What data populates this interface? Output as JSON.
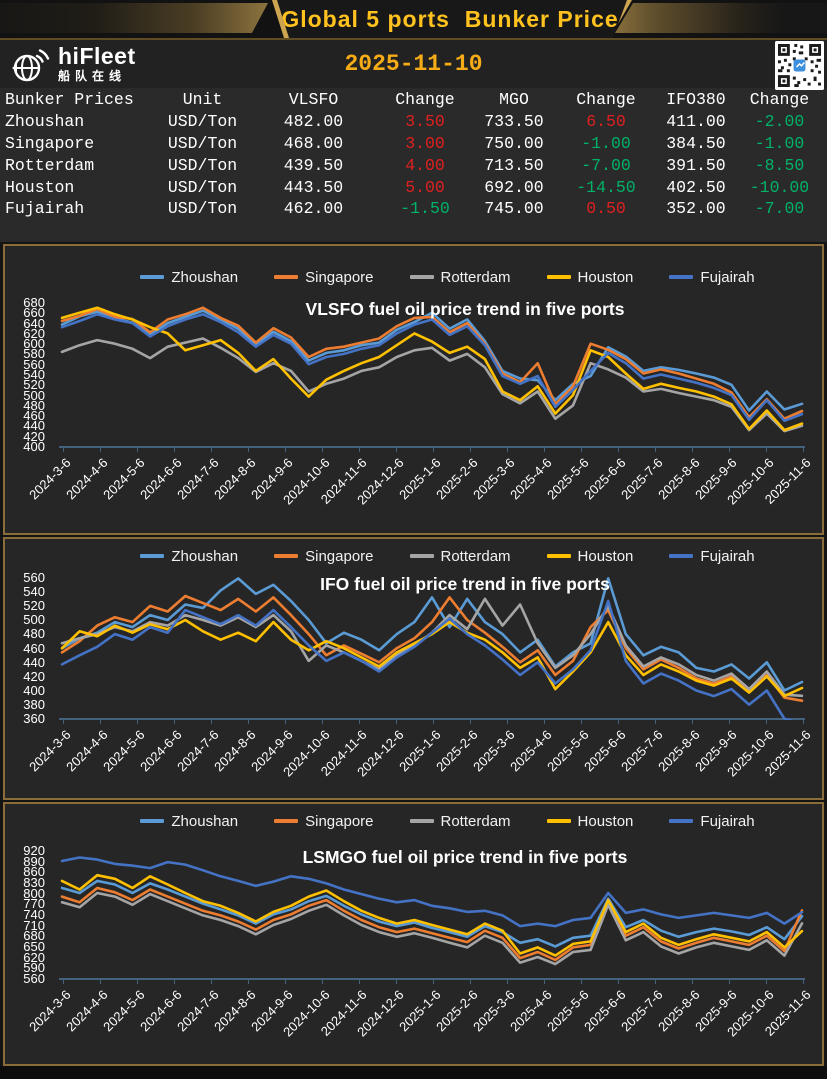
{
  "header": {
    "title": "Global 5 ports  Bunker Price",
    "brand": "hiFleet",
    "brand_cn": "船队在线",
    "date": "2025-11-10"
  },
  "colors": {
    "up_change": "#e02020",
    "down_change": "#00b268",
    "gold_accent": "#ffc21e",
    "section_border": "#8b6d3c",
    "axis_line": "#44617e"
  },
  "table": {
    "columns": [
      "Bunker Prices",
      "Unit",
      "VLSFO",
      "Change",
      "MGO",
      "Change",
      "IFO380",
      "Change"
    ],
    "change_columns": [
      3,
      5,
      7
    ],
    "rows": [
      [
        "Zhoushan",
        "USD/Ton",
        "482.00",
        "3.50",
        "733.50",
        "6.50",
        "411.00",
        "-2.00"
      ],
      [
        "Singapore",
        "USD/Ton",
        "468.00",
        "3.00",
        "750.00",
        "-1.00",
        "384.50",
        "-1.00"
      ],
      [
        "Rotterdam",
        "USD/Ton",
        "439.50",
        "4.00",
        "713.50",
        "-7.00",
        "391.50",
        "-8.50"
      ],
      [
        "Houston",
        "USD/Ton",
        "443.50",
        "5.00",
        "692.00",
        "-14.50",
        "402.50",
        "-10.00"
      ],
      [
        "Fujairah",
        "USD/Ton",
        "462.00",
        "-1.50",
        "745.00",
        "0.50",
        "352.00",
        "-7.00"
      ]
    ]
  },
  "chart_data": [
    {
      "type": "line",
      "title": "VLSFO fuel oil price trend in five ports",
      "legend_position": "top",
      "grid": false,
      "ylim": [
        400,
        680
      ],
      "yticks": [
        680,
        660,
        640,
        620,
        600,
        580,
        560,
        540,
        520,
        500,
        480,
        460,
        440,
        420,
        400
      ],
      "x_tick_labels": [
        "2024-3-6",
        "2024-4-6",
        "2024-5-6",
        "2024-6-6",
        "2024-7-6",
        "2024-8-6",
        "2024-9-6",
        "2024-10-6",
        "2024-11-6",
        "2024-12-6",
        "2025-1-6",
        "2025-2-6",
        "2025-3-6",
        "2025-4-6",
        "2025-5-6",
        "2025-6-6",
        "2025-7-6",
        "2025-8-6",
        "2025-9-6",
        "2025-10-6",
        "2025-11-6"
      ],
      "series": [
        {
          "name": "Zhoushan",
          "color": "#5B9BD5",
          "values": [
            636,
            652,
            661,
            648,
            640,
            616,
            639,
            651,
            663,
            646,
            628,
            597,
            622,
            604,
            566,
            581,
            586,
            596,
            601,
            626,
            641,
            659,
            628,
            646,
            604,
            546,
            531,
            528,
            489,
            521,
            536,
            592,
            574,
            546,
            553,
            548,
            541,
            533,
            519,
            469,
            506,
            471,
            482
          ]
        },
        {
          "name": "Singapore",
          "color": "#ED7D31",
          "values": [
            643,
            653,
            666,
            651,
            647,
            621,
            646,
            656,
            669,
            649,
            634,
            601,
            629,
            611,
            573,
            589,
            593,
            601,
            609,
            633,
            649,
            651,
            621,
            639,
            599,
            541,
            524,
            561,
            481,
            516,
            599,
            587,
            569,
            541,
            549,
            541,
            531,
            521,
            504,
            456,
            491,
            453,
            468
          ]
        },
        {
          "name": "Rotterdam",
          "color": "#A5A5A5",
          "values": [
            583,
            596,
            606,
            599,
            589,
            571,
            593,
            601,
            609,
            591,
            571,
            544,
            561,
            546,
            506,
            521,
            531,
            546,
            553,
            573,
            586,
            591,
            566,
            579,
            553,
            501,
            483,
            506,
            453,
            479,
            561,
            549,
            533,
            506,
            511,
            503,
            496,
            489,
            476,
            431,
            463,
            429,
            439.5
          ]
        },
        {
          "name": "Houston",
          "color": "#FFC000",
          "values": [
            649,
            659,
            669,
            656,
            646,
            631,
            619,
            586,
            596,
            606,
            581,
            546,
            569,
            531,
            496,
            529,
            546,
            561,
            573,
            596,
            619,
            603,
            581,
            593,
            569,
            506,
            489,
            516,
            463,
            499,
            586,
            573,
            541,
            511,
            521,
            513,
            506,
            496,
            481,
            433,
            469,
            431,
            443.5
          ]
        },
        {
          "name": "Fujairah",
          "color": "#4472C4",
          "values": [
            631,
            643,
            656,
            646,
            639,
            613,
            633,
            646,
            656,
            641,
            621,
            593,
            616,
            599,
            559,
            573,
            579,
            589,
            596,
            619,
            636,
            646,
            616,
            633,
            596,
            536,
            521,
            536,
            476,
            509,
            546,
            581,
            561,
            531,
            539,
            531,
            523,
            513,
            499,
            451,
            489,
            449,
            462
          ]
        }
      ]
    },
    {
      "type": "line",
      "title": "IFO fuel oil price trend in five ports",
      "legend_position": "top",
      "grid": false,
      "ylim": [
        360,
        560
      ],
      "yticks": [
        560,
        540,
        520,
        500,
        480,
        460,
        440,
        420,
        400,
        380,
        360
      ],
      "x_tick_labels": [
        "2024-3-6",
        "2024-4-6",
        "2024-5-6",
        "2024-6-6",
        "2024-7-6",
        "2024-8-6",
        "2024-9-6",
        "2024-10-6",
        "2024-11-6",
        "2024-12-6",
        "2025-1-6",
        "2025-2-6",
        "2025-3-6",
        "2025-4-6",
        "2025-5-6",
        "2025-6-6",
        "2025-7-6",
        "2025-8-6",
        "2025-9-6",
        "2025-10-6",
        "2025-11-6"
      ],
      "series": [
        {
          "name": "Zhoushan",
          "color": "#5B9BD5",
          "values": [
            459,
            473,
            481,
            496,
            489,
            506,
            499,
            521,
            516,
            541,
            558,
            536,
            549,
            526,
            499,
            466,
            481,
            471,
            456,
            479,
            496,
            531,
            489,
            529,
            496,
            479,
            453,
            471,
            433,
            453,
            466,
            558,
            479,
            449,
            461,
            453,
            431,
            426,
            436,
            416,
            439,
            399,
            411
          ]
        },
        {
          "name": "Singapore",
          "color": "#ED7D31",
          "values": [
            453,
            469,
            491,
            503,
            496,
            519,
            511,
            533,
            523,
            513,
            529,
            511,
            531,
            506,
            479,
            449,
            463,
            451,
            439,
            459,
            473,
            496,
            531,
            499,
            481,
            461,
            439,
            456,
            421,
            441,
            489,
            513,
            459,
            429,
            443,
            431,
            416,
            409,
            419,
            399,
            421,
            389,
            384.5
          ]
        },
        {
          "name": "Rotterdam",
          "color": "#A5A5A5",
          "values": [
            466,
            473,
            479,
            489,
            483,
            496,
            491,
            506,
            499,
            491,
            503,
            489,
            506,
            483,
            441,
            463,
            453,
            441,
            429,
            449,
            463,
            481,
            506,
            486,
            529,
            491,
            521,
            466,
            431,
            449,
            479,
            519,
            463,
            433,
            446,
            436,
            421,
            413,
            423,
            401,
            426,
            393,
            391.5
          ]
        },
        {
          "name": "Houston",
          "color": "#FFC000",
          "values": [
            459,
            483,
            476,
            491,
            481,
            493,
            486,
            499,
            483,
            471,
            481,
            469,
            496,
            471,
            456,
            469,
            459,
            446,
            433,
            453,
            466,
            479,
            496,
            481,
            471,
            453,
            431,
            446,
            401,
            426,
            453,
            496,
            449,
            421,
            436,
            426,
            413,
            406,
            416,
            396,
            419,
            391,
            402.5
          ]
        },
        {
          "name": "Fujairah",
          "color": "#4472C4",
          "values": [
            436,
            449,
            461,
            479,
            471,
            489,
            481,
            513,
            503,
            493,
            506,
            491,
            513,
            489,
            463,
            441,
            453,
            441,
            426,
            446,
            461,
            481,
            501,
            479,
            463,
            443,
            421,
            439,
            409,
            429,
            456,
            526,
            441,
            409,
            423,
            413,
            399,
            391,
            401,
            379,
            399,
            359,
            352
          ]
        }
      ]
    },
    {
      "type": "line",
      "title": "LSMGO fuel oil price trend in five ports",
      "legend_position": "top",
      "grid": false,
      "ylim": [
        560,
        920
      ],
      "yticks": [
        920,
        890,
        860,
        830,
        800,
        770,
        740,
        710,
        680,
        650,
        620,
        590,
        560
      ],
      "x_tick_labels": [
        "2024-3-6",
        "2024-4-6",
        "2024-5-6",
        "2024-6-6",
        "2024-7-6",
        "2024-8-6",
        "2024-9-6",
        "2024-10-6",
        "2024-11-6",
        "2024-12-6",
        "2025-1-6",
        "2025-2-6",
        "2025-3-6",
        "2025-4-6",
        "2025-5-6",
        "2025-6-6",
        "2025-7-6",
        "2025-8-6",
        "2025-9-6",
        "2025-10-6",
        "2025-11-6"
      ],
      "series": [
        {
          "name": "Zhoushan",
          "color": "#5B9BD5",
          "values": [
            813,
            799,
            833,
            823,
            799,
            826,
            809,
            789,
            769,
            753,
            736,
            713,
            739,
            753,
            776,
            791,
            763,
            739,
            719,
            706,
            716,
            701,
            689,
            676,
            706,
            689,
            659,
            669,
            649,
            673,
            679,
            783,
            703,
            723,
            693,
            676,
            689,
            699,
            691,
            681,
            703,
            669,
            733.5
          ]
        },
        {
          "name": "Singapore",
          "color": "#ED7D31",
          "values": [
            789,
            773,
            813,
            801,
            779,
            809,
            789,
            769,
            749,
            736,
            719,
            696,
            723,
            739,
            763,
            779,
            749,
            723,
            703,
            689,
            699,
            686,
            673,
            661,
            693,
            673,
            616,
            633,
            611,
            646,
            653,
            773,
            679,
            703,
            663,
            643,
            659,
            673,
            663,
            653,
            679,
            636,
            750
          ]
        },
        {
          "name": "Rotterdam",
          "color": "#A5A5A5",
          "values": [
            773,
            759,
            799,
            789,
            766,
            796,
            776,
            756,
            736,
            723,
            706,
            683,
            709,
            726,
            749,
            766,
            736,
            709,
            689,
            676,
            686,
            673,
            659,
            646,
            679,
            659,
            603,
            619,
            599,
            633,
            639,
            766,
            666,
            689,
            649,
            629,
            646,
            659,
            649,
            639,
            666,
            623,
            713.5
          ]
        },
        {
          "name": "Houston",
          "color": "#FFC000",
          "values": [
            833,
            809,
            849,
            839,
            813,
            846,
            823,
            799,
            776,
            763,
            743,
            719,
            746,
            763,
            789,
            806,
            776,
            749,
            729,
            713,
            723,
            709,
            696,
            683,
            713,
            693,
            629,
            646,
            623,
            656,
            663,
            779,
            689,
            713,
            673,
            653,
            669,
            683,
            673,
            663,
            689,
            646,
            692
          ]
        },
        {
          "name": "Fujairah",
          "color": "#4472C4",
          "values": [
            889,
            899,
            893,
            881,
            876,
            869,
            886,
            879,
            863,
            846,
            833,
            819,
            831,
            846,
            839,
            826,
            809,
            796,
            783,
            773,
            779,
            763,
            756,
            746,
            749,
            736,
            706,
            713,
            706,
            723,
            729,
            799,
            743,
            753,
            739,
            729,
            736,
            743,
            736,
            729,
            743,
            713,
            745
          ]
        }
      ]
    }
  ]
}
